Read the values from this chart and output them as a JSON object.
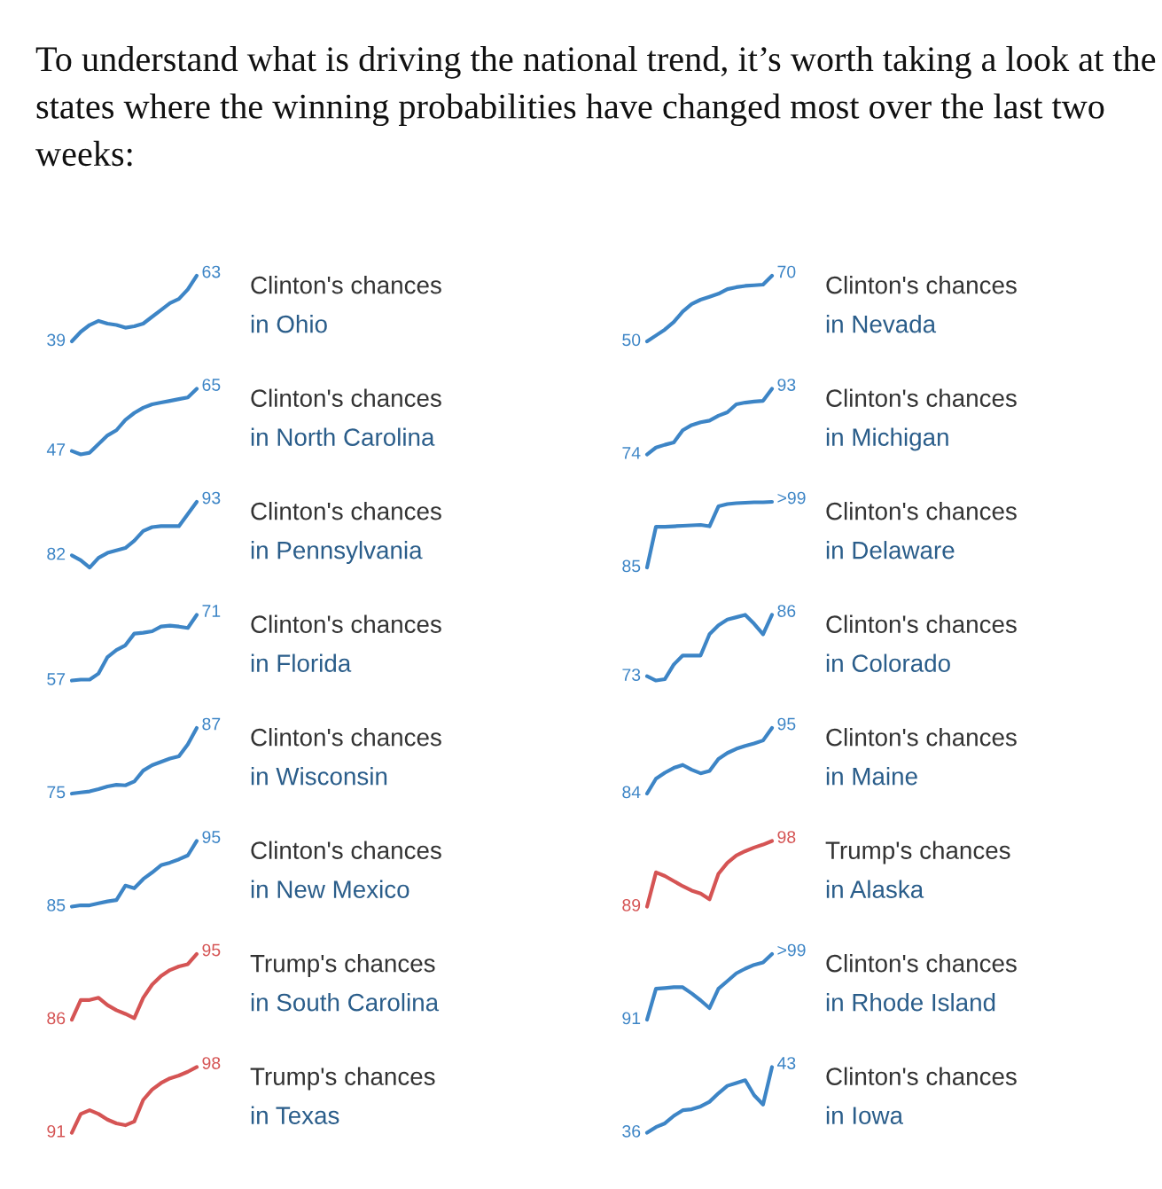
{
  "chart_data": [
    {
      "type": "line",
      "annotations": [
        "Clinton's chances",
        "in Ohio",
        "To understand what is driving the national trend, it’s worth taking a look at the states where the winning probabilities have changed most over the last two weeks:"
      ],
      "categories": [
        null,
        null,
        null,
        null,
        null,
        null,
        null,
        null,
        null,
        null,
        null,
        null,
        null,
        null,
        null
      ],
      "color": "#3d85c6",
      "values": [
        39,
        42.5,
        45,
        46.5,
        45.5,
        45,
        44,
        44.5,
        45.5,
        48,
        50.5,
        53,
        54.5,
        58,
        63
      ],
      "value_labels": [
        "39",
        null,
        null,
        null,
        null,
        null,
        null,
        null,
        null,
        null,
        null,
        null,
        null,
        null,
        "63"
      ]
    },
    {
      "type": "line",
      "annotations": [
        "Clinton's chances",
        "in Nevada"
      ],
      "categories": [
        null,
        null,
        null,
        null,
        null,
        null,
        null,
        null,
        null,
        null,
        null,
        null,
        null,
        null,
        null
      ],
      "color": "#3d85c6",
      "values": [
        50,
        51.8,
        53.6,
        55.9,
        59.1,
        61.4,
        62.7,
        63.6,
        64.5,
        65.9,
        66.5,
        66.9,
        67.1,
        67.3,
        70
      ],
      "value_labels": [
        "50",
        null,
        null,
        null,
        null,
        null,
        null,
        null,
        null,
        null,
        null,
        null,
        null,
        null,
        "70"
      ]
    },
    {
      "type": "line",
      "annotations": [
        "Clinton's chances",
        "in North Carolina"
      ],
      "categories": [
        null,
        null,
        null,
        null,
        null,
        null,
        null,
        null,
        null,
        null,
        null,
        null,
        null,
        null,
        null
      ],
      "color": "#3d85c6",
      "values": [
        47,
        46,
        46.5,
        49,
        51.5,
        53,
        56,
        58,
        59.5,
        60.5,
        61,
        61.5,
        62,
        62.5,
        65
      ],
      "value_labels": [
        "47",
        null,
        null,
        null,
        null,
        null,
        null,
        null,
        null,
        null,
        null,
        null,
        null,
        null,
        "65"
      ]
    },
    {
      "type": "line",
      "annotations": [
        "Clinton's chances",
        "in Michigan"
      ],
      "categories": [
        null,
        null,
        null,
        null,
        null,
        null,
        null,
        null,
        null,
        null,
        null,
        null,
        null,
        null,
        null
      ],
      "color": "#3d85c6",
      "values": [
        74,
        76,
        76.8,
        77.5,
        81,
        82.5,
        83.3,
        83.8,
        85.2,
        86.2,
        88.5,
        89,
        89.3,
        89.5,
        93
      ],
      "value_labels": [
        "74",
        null,
        null,
        null,
        null,
        null,
        null,
        null,
        null,
        null,
        null,
        null,
        null,
        null,
        "93"
      ]
    },
    {
      "type": "line",
      "annotations": [
        "Clinton's chances",
        "in Pennsylvania"
      ],
      "categories": [
        null,
        null,
        null,
        null,
        null,
        null,
        null,
        null,
        null,
        null,
        null,
        null,
        null,
        null,
        null
      ],
      "color": "#3d85c6",
      "values": [
        82,
        81,
        79.5,
        81.5,
        82.5,
        83,
        83.5,
        85,
        87,
        87.8,
        88,
        88,
        88,
        90.5,
        93
      ],
      "value_labels": [
        "82",
        null,
        null,
        null,
        null,
        null,
        null,
        null,
        null,
        null,
        null,
        null,
        null,
        null,
        "93"
      ]
    },
    {
      "type": "line",
      "annotations": [
        "Clinton's chances",
        "in Delaware"
      ],
      "categories": [
        null,
        null,
        null,
        null,
        null,
        null,
        null,
        null,
        null,
        null,
        null,
        null,
        null,
        null,
        null
      ],
      "color": "#3d85c6",
      "values": [
        85,
        94,
        94,
        94.1,
        94.2,
        94.3,
        94.4,
        94.1,
        98.5,
        99,
        99.2,
        99.3,
        99.4,
        99.4,
        99.5
      ],
      "value_labels": [
        "85",
        null,
        null,
        null,
        null,
        null,
        null,
        null,
        null,
        null,
        null,
        null,
        null,
        null,
        ">99"
      ]
    },
    {
      "type": "line",
      "annotations": [
        "Clinton's chances",
        "in Florida"
      ],
      "categories": [
        null,
        null,
        null,
        null,
        null,
        null,
        null,
        null,
        null,
        null,
        null,
        null,
        null,
        null,
        null
      ],
      "color": "#3d85c6",
      "values": [
        57,
        57.2,
        57.2,
        58.5,
        62,
        63.5,
        64.5,
        67,
        67.2,
        67.5,
        68.5,
        68.7,
        68.5,
        68.2,
        71
      ],
      "value_labels": [
        "57",
        null,
        null,
        null,
        null,
        null,
        null,
        null,
        null,
        null,
        null,
        null,
        null,
        null,
        "71"
      ]
    },
    {
      "type": "line",
      "annotations": [
        "Clinton's chances",
        "in Colorado"
      ],
      "categories": [
        null,
        null,
        null,
        null,
        null,
        null,
        null,
        null,
        null,
        null,
        null,
        null,
        null,
        null,
        null
      ],
      "color": "#3d85c6",
      "values": [
        73,
        72.1,
        72.4,
        75.5,
        77.4,
        77.4,
        77.4,
        81.9,
        83.8,
        85,
        85.5,
        86,
        84.1,
        81.9,
        86
      ],
      "value_labels": [
        "73",
        null,
        null,
        null,
        null,
        null,
        null,
        null,
        null,
        null,
        null,
        null,
        null,
        null,
        "86"
      ]
    },
    {
      "type": "line",
      "annotations": [
        "Clinton's chances",
        "in Wisconsin"
      ],
      "categories": [
        null,
        null,
        null,
        null,
        null,
        null,
        null,
        null,
        null,
        null,
        null,
        null,
        null,
        null,
        null
      ],
      "color": "#3d85c6",
      "values": [
        75,
        75.2,
        75.4,
        75.8,
        76.3,
        76.6,
        76.5,
        77.2,
        79.2,
        80.2,
        80.8,
        81.4,
        81.8,
        84,
        87
      ],
      "value_labels": [
        "75",
        null,
        null,
        null,
        null,
        null,
        null,
        null,
        null,
        null,
        null,
        null,
        null,
        null,
        "87"
      ]
    },
    {
      "type": "line",
      "annotations": [
        "Clinton's chances",
        "in Maine"
      ],
      "categories": [
        null,
        null,
        null,
        null,
        null,
        null,
        null,
        null,
        null,
        null,
        null,
        null,
        null,
        null,
        null
      ],
      "color": "#3d85c6",
      "values": [
        84,
        86.5,
        87.5,
        88.3,
        88.8,
        88,
        87.4,
        87.8,
        89.8,
        90.8,
        91.5,
        92,
        92.4,
        92.9,
        95
      ],
      "value_labels": [
        "84",
        null,
        null,
        null,
        null,
        null,
        null,
        null,
        null,
        null,
        null,
        null,
        null,
        null,
        "95"
      ]
    },
    {
      "type": "line",
      "annotations": [
        "Clinton's chances",
        "in New Mexico"
      ],
      "categories": [
        null,
        null,
        null,
        null,
        null,
        null,
        null,
        null,
        null,
        null,
        null,
        null,
        null,
        null,
        null
      ],
      "color": "#3d85c6",
      "values": [
        85,
        85.2,
        85.2,
        85.5,
        85.8,
        86,
        88.2,
        87.8,
        89.2,
        90.2,
        91.3,
        91.7,
        92.2,
        92.8,
        95
      ],
      "value_labels": [
        "85",
        null,
        null,
        null,
        null,
        null,
        null,
        null,
        null,
        null,
        null,
        null,
        null,
        null,
        "95"
      ]
    },
    {
      "type": "line",
      "annotations": [
        "Trump's chances",
        "in Alaska"
      ],
      "categories": [
        null,
        null,
        null,
        null,
        null,
        null,
        null,
        null,
        null,
        null,
        null,
        null,
        null,
        null,
        null
      ],
      "color": "#d55454",
      "values": [
        89,
        93.7,
        93.2,
        92.5,
        91.8,
        91.2,
        90.8,
        90,
        93.5,
        95,
        96,
        96.6,
        97.1,
        97.5,
        98
      ],
      "value_labels": [
        "89",
        null,
        null,
        null,
        null,
        null,
        null,
        null,
        null,
        null,
        null,
        null,
        null,
        null,
        "98"
      ]
    },
    {
      "type": "line",
      "annotations": [
        "Trump's chances",
        "in South Carolina"
      ],
      "categories": [
        null,
        null,
        null,
        null,
        null,
        null,
        null,
        null,
        null,
        null,
        null,
        null,
        null,
        null,
        null
      ],
      "color": "#d55454",
      "values": [
        86,
        88.7,
        88.7,
        89,
        88,
        87.3,
        86.8,
        86.2,
        89,
        90.8,
        92,
        92.8,
        93.3,
        93.6,
        95
      ],
      "value_labels": [
        "86",
        null,
        null,
        null,
        null,
        null,
        null,
        null,
        null,
        null,
        null,
        null,
        null,
        null,
        "95"
      ]
    },
    {
      "type": "line",
      "annotations": [
        "Clinton's chances",
        "in Rhode Island"
      ],
      "categories": [
        null,
        null,
        null,
        null,
        null,
        null,
        null,
        null,
        null,
        null,
        null,
        null,
        null,
        null,
        null
      ],
      "color": "#3d85c6",
      "values": [
        91,
        95,
        95.1,
        95.2,
        95.2,
        94.4,
        93.5,
        92.5,
        95,
        96,
        97,
        97.6,
        98.1,
        98.4,
        99.5
      ],
      "value_labels": [
        "91",
        null,
        null,
        null,
        null,
        null,
        null,
        null,
        null,
        null,
        null,
        null,
        null,
        null,
        ">99"
      ]
    },
    {
      "type": "line",
      "annotations": [
        "Trump's chances",
        "in Texas"
      ],
      "categories": [
        null,
        null,
        null,
        null,
        null,
        null,
        null,
        null,
        null,
        null,
        null,
        null,
        null,
        null,
        null
      ],
      "color": "#d55454",
      "values": [
        91,
        93,
        93.4,
        93,
        92.4,
        92,
        91.8,
        92.2,
        94.5,
        95.6,
        96.3,
        96.8,
        97.1,
        97.5,
        98
      ],
      "value_labels": [
        "91",
        null,
        null,
        null,
        null,
        null,
        null,
        null,
        null,
        null,
        null,
        null,
        null,
        null,
        "98"
      ]
    },
    {
      "type": "line",
      "annotations": [
        "Clinton's chances",
        "in Iowa"
      ],
      "categories": [
        null,
        null,
        null,
        null,
        null,
        null,
        null,
        null,
        null,
        null,
        null,
        null,
        null,
        null,
        null
      ],
      "color": "#3d85c6",
      "values": [
        36,
        36.6,
        37,
        37.8,
        38.4,
        38.5,
        38.8,
        39.3,
        40.2,
        41,
        41.3,
        41.6,
        40,
        39,
        43
      ],
      "value_labels": [
        "36",
        null,
        null,
        null,
        null,
        null,
        null,
        null,
        null,
        null,
        null,
        null,
        null,
        null,
        "43"
      ]
    }
  ]
}
